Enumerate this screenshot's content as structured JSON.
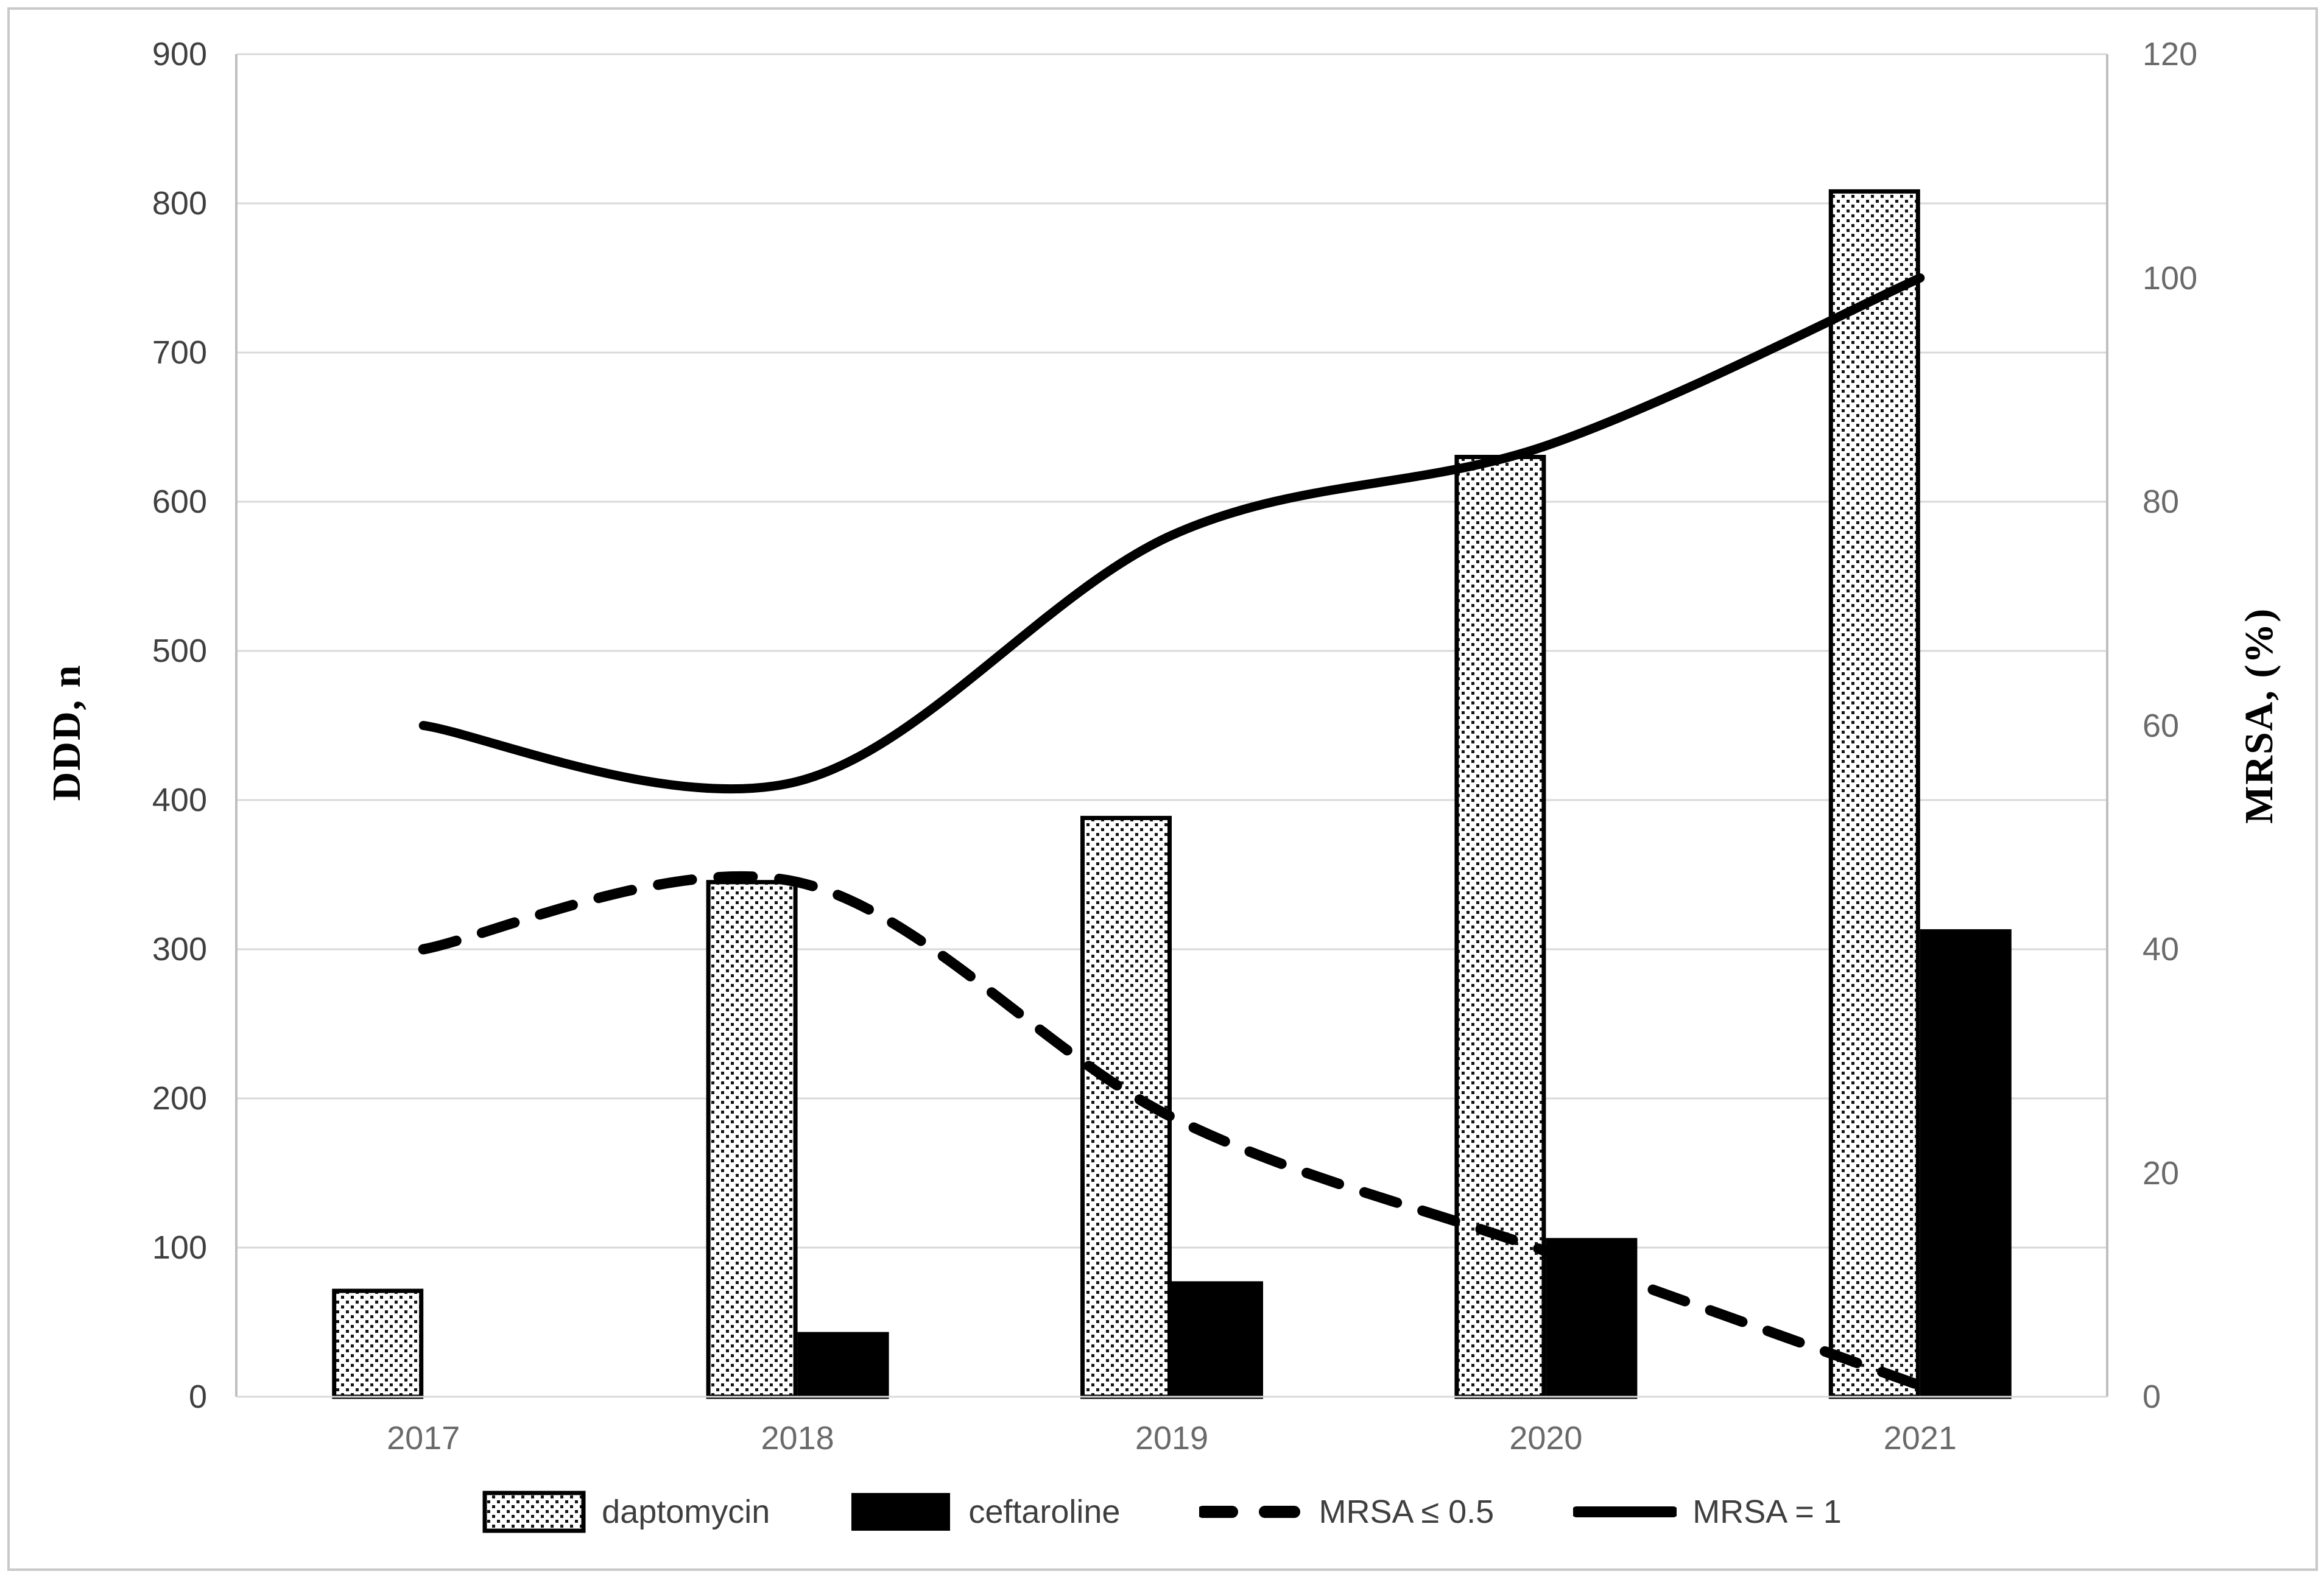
{
  "figure": {
    "background": "#ffffff",
    "frame_border_color": "#c9c9c9"
  },
  "chart_data": {
    "type": "combo-bar-line",
    "title": "",
    "categories": [
      "2017",
      "2018",
      "2019",
      "2020",
      "2021"
    ],
    "left_axis": {
      "label": "DDD, n",
      "min": 0,
      "max": 900,
      "step": 100
    },
    "right_axis": {
      "label": "MRSA, (%)",
      "min": 0,
      "max": 120,
      "step": 20
    },
    "grid": true,
    "legend_position": "bottom",
    "series": [
      {
        "name": "daptomycin",
        "type": "bar",
        "axis": "left",
        "style": "dotted-pattern",
        "values": [
          71,
          345,
          388,
          630,
          808
        ]
      },
      {
        "name": "ceftaroline",
        "type": "bar",
        "axis": "left",
        "style": "solid-black",
        "values": [
          0,
          42,
          76,
          105,
          312
        ]
      },
      {
        "name": "MRSA ≤ 0.5",
        "type": "line",
        "axis": "right",
        "style": "dashed",
        "values": [
          40,
          46,
          25,
          13,
          1
        ]
      },
      {
        "name": "MRSA = 1",
        "type": "line",
        "axis": "right",
        "style": "solid",
        "values": [
          60,
          55,
          77,
          85,
          100
        ]
      }
    ]
  },
  "colors": {
    "bar_fill_black": "#000000",
    "bar_border": "#000000",
    "pattern_dot": "#141414",
    "line_color": "#000000",
    "gridline": "#d9d9d9",
    "axis_line": "#bfbfbf",
    "tick_left": "#404040",
    "tick_right": "#6a6a6a",
    "legend_text": "#3f3f3f"
  }
}
